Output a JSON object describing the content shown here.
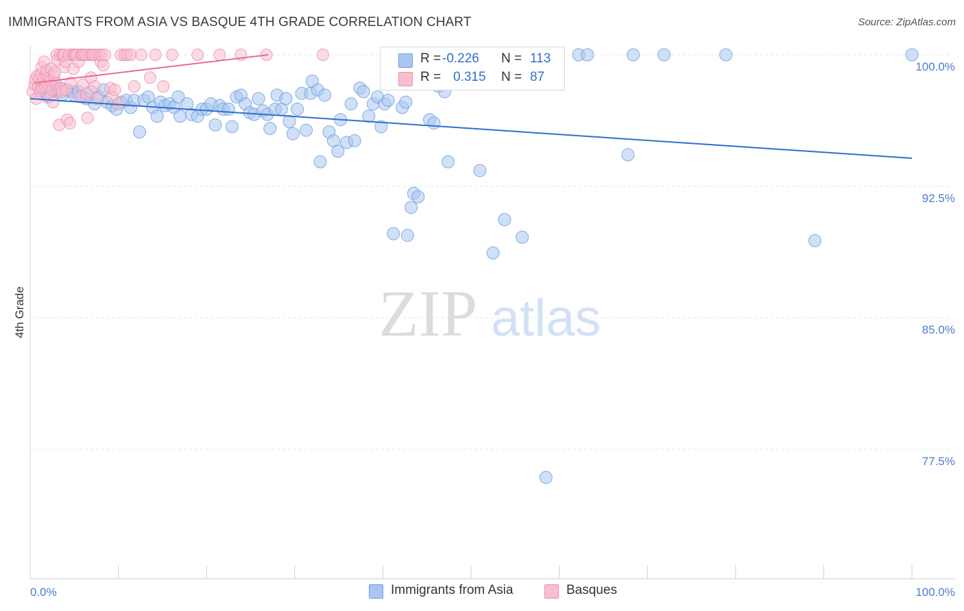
{
  "title": "IMMIGRANTS FROM ASIA VS BASQUE 4TH GRADE CORRELATION CHART",
  "source": "Source: ZipAtlas.com",
  "watermark": {
    "zip": "ZIP",
    "atlas": "atlas"
  },
  "legend": {
    "rows": [
      {
        "r_label": "R =",
        "r_value": "-0.226",
        "n_label": "N =",
        "n_value": "113",
        "color": "#a9c6f0",
        "border": "#6f9fe0"
      },
      {
        "r_label": "R =",
        "r_value": "0.315",
        "n_label": "N =",
        "n_value": "87",
        "color": "#f7bfd0",
        "border": "#ef8fae"
      }
    ]
  },
  "bottom_legend": [
    {
      "label": "Immigrants from Asia",
      "color": "#a9c6f0",
      "border": "#6f9fe0"
    },
    {
      "label": "Basques",
      "color": "#f7bfd0",
      "border": "#ef8fae"
    }
  ],
  "chart_data": {
    "type": "scatter",
    "ylabel": "4th Grade",
    "xlabel": "",
    "xlim": [
      0,
      100
    ],
    "ylim": [
      70.6,
      101.0
    ],
    "x_tick_labels": [
      "0.0%",
      "100.0%"
    ],
    "y_ticks": [
      {
        "value": 100.0,
        "label": "100.0%"
      },
      {
        "value": 92.5,
        "label": "92.5%"
      },
      {
        "value": 85.0,
        "label": "85.0%"
      },
      {
        "value": 77.5,
        "label": "77.5%"
      }
    ],
    "series": [
      {
        "name": "Immigrants from Asia",
        "color": "#6f9fe0",
        "fill": "#a9c6f0",
        "trend": {
          "x": [
            0,
            100
          ],
          "y": [
            97.5,
            94.1
          ]
        },
        "points": [
          [
            1.2,
            98.0
          ],
          [
            1.8,
            97.8
          ],
          [
            2.0,
            97.6
          ],
          [
            2.6,
            98.2
          ],
          [
            3.0,
            97.9
          ],
          [
            3.4,
            98.1
          ],
          [
            3.6,
            97.7
          ],
          [
            4.2,
            98.0
          ],
          [
            4.8,
            97.9
          ],
          [
            5.0,
            97.7
          ],
          [
            5.5,
            97.9
          ],
          [
            5.9,
            97.6
          ],
          [
            6.4,
            97.5
          ],
          [
            6.9,
            97.9
          ],
          [
            7.3,
            97.2
          ],
          [
            7.8,
            97.6
          ],
          [
            8.3,
            98.0
          ],
          [
            8.7,
            97.3
          ],
          [
            9.3,
            97.1
          ],
          [
            9.8,
            96.9
          ],
          [
            10.3,
            97.3
          ],
          [
            10.9,
            97.4
          ],
          [
            11.4,
            97.0
          ],
          [
            11.8,
            97.4
          ],
          [
            12.4,
            95.6
          ],
          [
            12.9,
            97.4
          ],
          [
            13.4,
            97.6
          ],
          [
            13.9,
            97.0
          ],
          [
            14.4,
            96.5
          ],
          [
            14.8,
            97.3
          ],
          [
            15.3,
            97.1
          ],
          [
            15.8,
            97.2
          ],
          [
            16.3,
            97.0
          ],
          [
            16.8,
            97.6
          ],
          [
            17.0,
            96.5
          ],
          [
            17.8,
            97.2
          ],
          [
            18.3,
            96.6
          ],
          [
            19.0,
            96.5
          ],
          [
            19.5,
            96.9
          ],
          [
            20.0,
            96.9
          ],
          [
            20.5,
            97.2
          ],
          [
            21.0,
            96.0
          ],
          [
            21.5,
            97.1
          ],
          [
            21.9,
            96.9
          ],
          [
            22.5,
            96.9
          ],
          [
            22.9,
            95.9
          ],
          [
            23.4,
            97.6
          ],
          [
            23.9,
            97.7
          ],
          [
            24.4,
            97.2
          ],
          [
            24.9,
            96.7
          ],
          [
            25.4,
            96.6
          ],
          [
            25.9,
            97.5
          ],
          [
            26.4,
            96.8
          ],
          [
            26.9,
            96.6
          ],
          [
            27.2,
            95.8
          ],
          [
            27.8,
            96.9
          ],
          [
            28.0,
            97.7
          ],
          [
            28.5,
            96.9
          ],
          [
            29.0,
            97.5
          ],
          [
            29.4,
            96.2
          ],
          [
            29.8,
            95.5
          ],
          [
            30.3,
            96.9
          ],
          [
            30.8,
            97.8
          ],
          [
            31.3,
            95.7
          ],
          [
            31.8,
            97.8
          ],
          [
            32.0,
            98.5
          ],
          [
            32.6,
            98.0
          ],
          [
            32.9,
            93.9
          ],
          [
            33.4,
            97.7
          ],
          [
            33.9,
            95.6
          ],
          [
            34.4,
            95.1
          ],
          [
            34.9,
            94.5
          ],
          [
            35.2,
            96.3
          ],
          [
            35.9,
            95.0
          ],
          [
            36.4,
            97.2
          ],
          [
            36.8,
            95.1
          ],
          [
            37.4,
            98.1
          ],
          [
            37.8,
            97.9
          ],
          [
            38.4,
            96.5
          ],
          [
            38.9,
            97.2
          ],
          [
            39.4,
            97.6
          ],
          [
            39.8,
            95.9
          ],
          [
            40.2,
            97.2
          ],
          [
            40.6,
            97.4
          ],
          [
            41.2,
            89.8
          ],
          [
            41.6,
            99.5
          ],
          [
            42.2,
            97.0
          ],
          [
            42.6,
            97.3
          ],
          [
            42.8,
            89.7
          ],
          [
            43.2,
            91.3
          ],
          [
            43.5,
            92.1
          ],
          [
            44.0,
            91.9
          ],
          [
            44.6,
            99.0
          ],
          [
            45.3,
            96.3
          ],
          [
            45.8,
            96.1
          ],
          [
            46.3,
            98.2
          ],
          [
            47.0,
            97.9
          ],
          [
            47.4,
            93.9
          ],
          [
            48.0,
            100.0
          ],
          [
            49.2,
            99.9
          ],
          [
            50.2,
            99.9
          ],
          [
            51.0,
            93.4
          ],
          [
            52.5,
            88.7
          ],
          [
            53.8,
            90.6
          ],
          [
            55.8,
            89.6
          ],
          [
            58.5,
            75.9
          ],
          [
            62.2,
            100.0
          ],
          [
            63.2,
            100.0
          ],
          [
            67.8,
            94.3
          ],
          [
            68.4,
            100.0
          ],
          [
            71.9,
            100.0
          ],
          [
            78.9,
            100.0
          ],
          [
            89.0,
            89.4
          ],
          [
            100.0,
            100.0
          ]
        ]
      },
      {
        "name": "Basques",
        "color": "#ef8fae",
        "fill": "#f7bfd0",
        "trend": {
          "x": [
            0.5,
            27.0
          ],
          "y": [
            98.4,
            100.0
          ]
        },
        "points": [
          [
            0.3,
            97.9
          ],
          [
            0.5,
            98.3
          ],
          [
            0.6,
            98.6
          ],
          [
            0.7,
            97.5
          ],
          [
            0.8,
            98.8
          ],
          [
            0.9,
            98.2
          ],
          [
            1.0,
            98.6
          ],
          [
            1.1,
            97.9
          ],
          [
            1.2,
            98.9
          ],
          [
            1.3,
            99.3
          ],
          [
            1.4,
            98.1
          ],
          [
            1.5,
            98.6
          ],
          [
            1.6,
            99.6
          ],
          [
            1.7,
            98.2
          ],
          [
            1.8,
            98.9
          ],
          [
            1.9,
            99.1
          ],
          [
            2.0,
            98.3
          ],
          [
            2.1,
            98.7
          ],
          [
            2.2,
            97.6
          ],
          [
            2.3,
            98.5
          ],
          [
            2.4,
            99.2
          ],
          [
            2.5,
            98.0
          ],
          [
            2.6,
            97.3
          ],
          [
            2.7,
            98.8
          ],
          [
            2.8,
            99.0
          ],
          [
            2.9,
            98.4
          ],
          [
            3.0,
            100.0
          ],
          [
            3.1,
            99.7
          ],
          [
            3.2,
            98.0
          ],
          [
            3.3,
            96.0
          ],
          [
            3.4,
            100.0
          ],
          [
            3.5,
            98.1
          ],
          [
            3.6,
            97.9
          ],
          [
            3.7,
            100.0
          ],
          [
            3.8,
            100.0
          ],
          [
            3.9,
            99.3
          ],
          [
            4.0,
            99.6
          ],
          [
            4.1,
            98.0
          ],
          [
            4.2,
            96.3
          ],
          [
            4.4,
            100.0
          ],
          [
            4.5,
            96.1
          ],
          [
            4.6,
            98.4
          ],
          [
            4.8,
            100.0
          ],
          [
            4.9,
            99.2
          ],
          [
            5.0,
            100.0
          ],
          [
            5.1,
            100.0
          ],
          [
            5.3,
            100.0
          ],
          [
            5.5,
            99.6
          ],
          [
            5.6,
            97.6
          ],
          [
            5.8,
            100.0
          ],
          [
            5.9,
            100.0
          ],
          [
            6.0,
            98.3
          ],
          [
            6.1,
            100.0
          ],
          [
            6.3,
            100.0
          ],
          [
            6.4,
            97.8
          ],
          [
            6.5,
            96.4
          ],
          [
            6.7,
            100.0
          ],
          [
            6.9,
            98.7
          ],
          [
            7.0,
            100.0
          ],
          [
            7.1,
            100.0
          ],
          [
            7.3,
            98.2
          ],
          [
            7.4,
            100.0
          ],
          [
            7.6,
            97.5
          ],
          [
            7.8,
            100.0
          ],
          [
            8.0,
            99.6
          ],
          [
            8.1,
            100.0
          ],
          [
            8.3,
            99.4
          ],
          [
            8.5,
            100.0
          ],
          [
            9.1,
            98.1
          ],
          [
            9.3,
            97.6
          ],
          [
            9.6,
            98.0
          ],
          [
            10.0,
            97.2
          ],
          [
            10.3,
            100.0
          ],
          [
            10.7,
            100.0
          ],
          [
            11.0,
            100.0
          ],
          [
            11.4,
            100.0
          ],
          [
            11.8,
            98.2
          ],
          [
            12.6,
            100.0
          ],
          [
            13.6,
            98.7
          ],
          [
            14.2,
            100.0
          ],
          [
            15.1,
            98.2
          ],
          [
            16.1,
            100.0
          ],
          [
            19.0,
            100.0
          ],
          [
            21.5,
            100.0
          ],
          [
            23.9,
            100.0
          ],
          [
            26.8,
            100.0
          ],
          [
            33.2,
            100.0
          ]
        ]
      }
    ]
  }
}
